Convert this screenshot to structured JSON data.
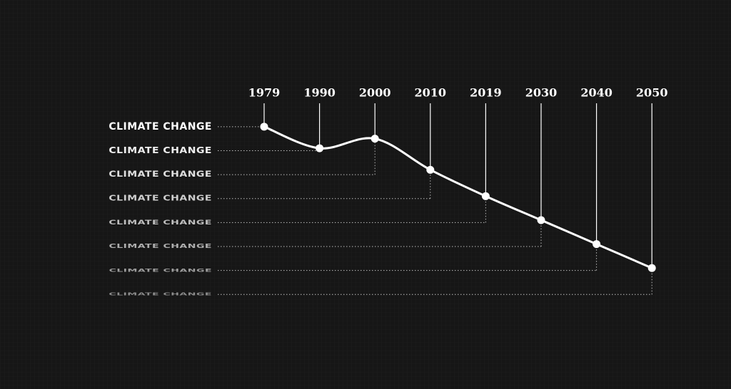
{
  "chart_data": {
    "type": "line",
    "categories": [
      "1979",
      "1990",
      "2000",
      "2010",
      "2019",
      "2030",
      "2040",
      "2050"
    ],
    "values": [
      8,
      7.1,
      7.5,
      6.2,
      5.1,
      4.1,
      3.1,
      2.1
    ],
    "row_labels": [
      "CLIMATE CHANGE",
      "CLIMATE CHANGE",
      "CLIMATE CHANGE",
      "CLIMATE CHANGE",
      "CLIMATE CHANGE",
      "CLIMATE CHANGE",
      "CLIMATE CHANGE",
      "CLIMATE CHANGE"
    ],
    "ylim": [
      0.5,
      8.5
    ],
    "color": "#ffffff"
  }
}
